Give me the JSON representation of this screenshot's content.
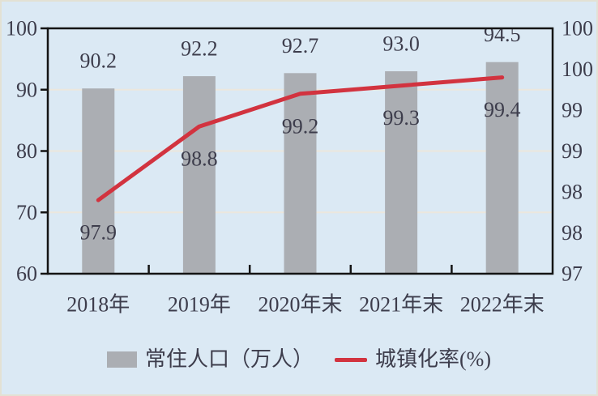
{
  "chart_data": {
    "type": "bar+line combo",
    "title": "",
    "categories": [
      "2018年",
      "2019年",
      "2020年末",
      "2021年末",
      "2022年末"
    ],
    "series": [
      {
        "name": "常住人口（万人）",
        "type": "bar",
        "axis": "left",
        "values": [
          90.2,
          92.2,
          92.7,
          93.0,
          94.5
        ],
        "labels": [
          "90.2",
          "92.2",
          "92.7",
          "93.0",
          "94.5"
        ],
        "color": "#abaeb3"
      },
      {
        "name": "城镇化率(%)",
        "type": "line",
        "axis": "right",
        "values": [
          97.9,
          98.8,
          99.2,
          99.3,
          99.4
        ],
        "labels": [
          "97.9",
          "98.8",
          "99.2",
          "99.3",
          "99.4"
        ],
        "color": "#d2333f"
      }
    ],
    "left_axis": {
      "min": 60,
      "max": 100,
      "tick_values_top_to_bottom": [
        100,
        90,
        80,
        70,
        60
      ],
      "tick_labels_top_to_bottom": [
        "100",
        "90",
        "80",
        "70",
        "60"
      ]
    },
    "right_axis": {
      "min": 97,
      "max": 100,
      "tick_labels_top_to_bottom": [
        "100",
        "100",
        "99",
        "99",
        "98",
        "98",
        "97"
      ]
    },
    "grid": true,
    "legend_position": "bottom",
    "colors": {
      "background": "#dbe9f4",
      "bar": "#abaeb3",
      "line": "#d2333f",
      "text": "#3d3d4c",
      "axis": "#141414",
      "gridline": "#ece7dd"
    }
  }
}
